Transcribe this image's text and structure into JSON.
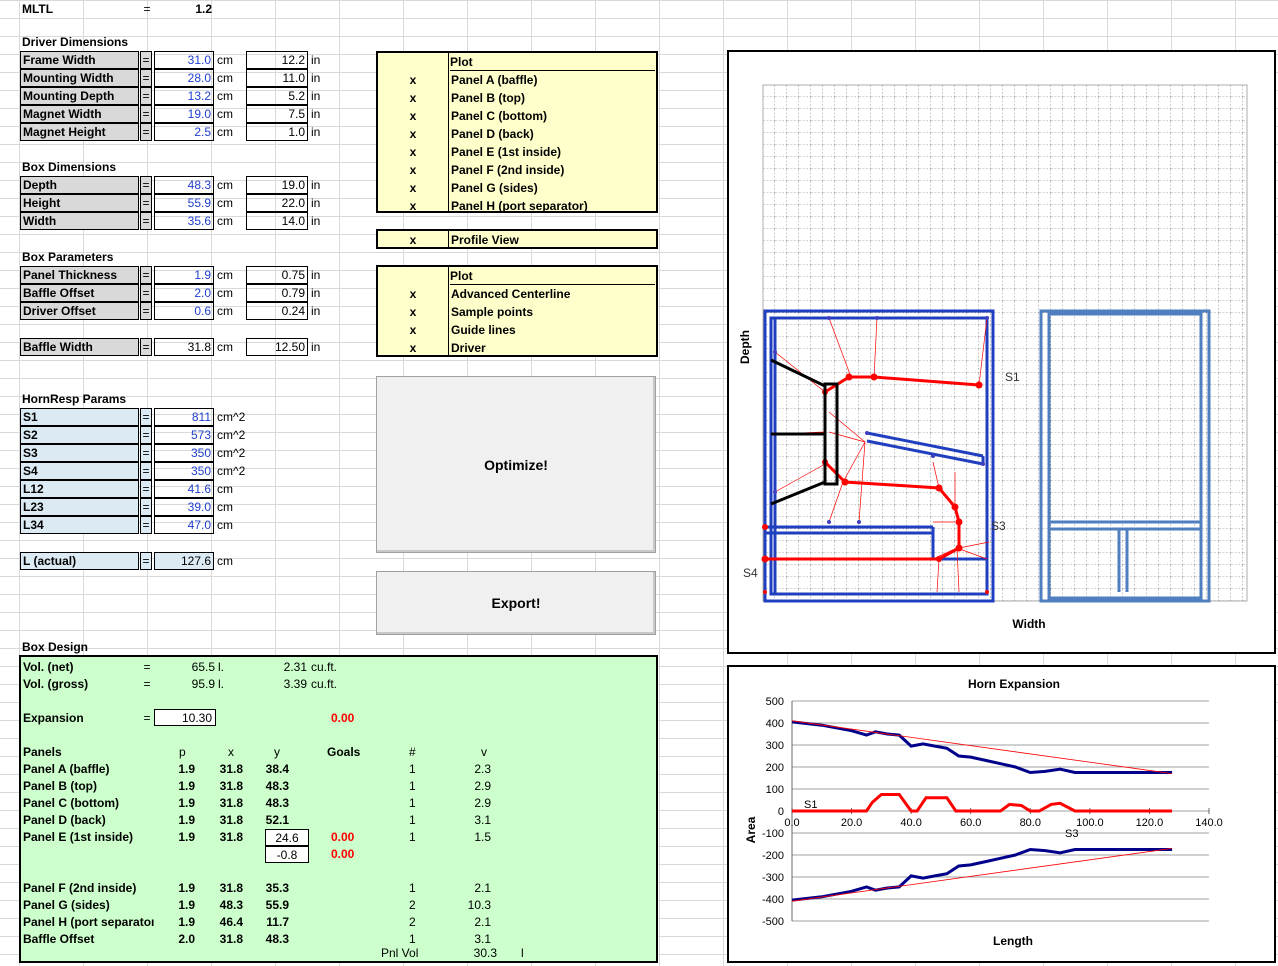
{
  "top": {
    "label": "MLTL",
    "eq": "=",
    "value": "1.2"
  },
  "driver": {
    "title": "Driver Dimensions",
    "rows": [
      {
        "label": "Frame Width",
        "cm": "31.0",
        "in": "12.2"
      },
      {
        "label": "Mounting Width",
        "cm": "28.0",
        "in": "11.0"
      },
      {
        "label": "Mounting Depth",
        "cm": "13.2",
        "in": "5.2"
      },
      {
        "label": "Magnet Width",
        "cm": "19.0",
        "in": "7.5"
      },
      {
        "label": "Magnet Height",
        "cm": "2.5",
        "in": "1.0"
      }
    ]
  },
  "box_dims": {
    "title": "Box Dimensions",
    "rows": [
      {
        "label": "Depth",
        "cm": "48.3",
        "in": "19.0"
      },
      {
        "label": "Height",
        "cm": "55.9",
        "in": "22.0"
      },
      {
        "label": "Width",
        "cm": "35.6",
        "in": "14.0"
      }
    ]
  },
  "box_params": {
    "title": "Box Parameters",
    "rows": [
      {
        "label": "Panel Thickness",
        "cm": "1.9",
        "in": "0.75"
      },
      {
        "label": "Baffle Offset",
        "cm": "2.0",
        "in": "0.79"
      },
      {
        "label": "Driver Offset",
        "cm": "0.6",
        "in": "0.24"
      }
    ],
    "baffle": {
      "label": "Baffle Width",
      "cm": "31.8",
      "in": "12.50"
    }
  },
  "units": {
    "cm": "cm",
    "in": "in",
    "cm2": "cm^2",
    "eq": "="
  },
  "hornresp": {
    "title": "HornResp Params",
    "rows": [
      {
        "label": "S1",
        "value": "811",
        "unit": "cm^2"
      },
      {
        "label": "S2",
        "value": "573",
        "unit": "cm^2"
      },
      {
        "label": "S3",
        "value": "350",
        "unit": "cm^2"
      },
      {
        "label": "S4",
        "value": "350",
        "unit": "cm^2"
      },
      {
        "label": "L12",
        "value": "41.6",
        "unit": "cm"
      },
      {
        "label": "L23",
        "value": "39.0",
        "unit": "cm"
      },
      {
        "label": "L34",
        "value": "47.0",
        "unit": "cm"
      }
    ],
    "actual": {
      "label": "L (actual)",
      "value": "127.6",
      "unit": "cm"
    }
  },
  "plot_panels": {
    "header": "Plot",
    "items": [
      {
        "mark": "x",
        "label": "Panel A (baffle)"
      },
      {
        "mark": "x",
        "label": "Panel B (top)"
      },
      {
        "mark": "x",
        "label": "Panel C (bottom)"
      },
      {
        "mark": "x",
        "label": "Panel D (back)"
      },
      {
        "mark": "x",
        "label": "Panel E (1st inside)"
      },
      {
        "mark": "x",
        "label": "Panel F (2nd inside)"
      },
      {
        "mark": "x",
        "label": "Panel G (sides)"
      },
      {
        "mark": "x",
        "label": "Panel H (port separator)"
      }
    ]
  },
  "profile_view": {
    "mark": "x",
    "label": "Profile View"
  },
  "plot_options": {
    "header": "Plot",
    "items": [
      {
        "mark": "x",
        "label": "Advanced Centerline"
      },
      {
        "mark": "x",
        "label": "Sample points"
      },
      {
        "mark": "x",
        "label": "Guide lines"
      },
      {
        "mark": "x",
        "label": "Driver"
      }
    ]
  },
  "buttons": {
    "optimize": "Optimize!",
    "export": "Export!"
  },
  "box_design": {
    "title": "Box Design",
    "vol_net": {
      "label": "Vol. (net)",
      "eq": "=",
      "l": "65.5",
      "lu": "l.",
      "cuft": "2.31",
      "cu": "cu.ft."
    },
    "vol_gross": {
      "label": "Vol. (gross)",
      "eq": "=",
      "l": "95.9",
      "lu": "l.",
      "cuft": "3.39",
      "cu": "cu.ft."
    },
    "expansion": {
      "label": "Expansion",
      "eq": "=",
      "value": "10.30",
      "goal": "0.00"
    },
    "headers": {
      "panels": "Panels",
      "p": "p",
      "x": "x",
      "y": "y",
      "goals": "Goals",
      "num": "#",
      "v": "v"
    },
    "rows": [
      {
        "name": "Panel A (baffle)",
        "p": "1.9",
        "x": "31.8",
        "y": "38.4",
        "goal": "",
        "num": "1",
        "v": "2.3"
      },
      {
        "name": "Panel B (top)",
        "p": "1.9",
        "x": "31.8",
        "y": "48.3",
        "goal": "",
        "num": "1",
        "v": "2.9"
      },
      {
        "name": "Panel C (bottom)",
        "p": "1.9",
        "x": "31.8",
        "y": "48.3",
        "goal": "",
        "num": "1",
        "v": "2.9"
      },
      {
        "name": "Panel D (back)",
        "p": "1.9",
        "x": "31.8",
        "y": "52.1",
        "goal": "",
        "num": "1",
        "v": "3.1"
      },
      {
        "name": "Panel E (1st inside)",
        "p": "1.9",
        "x": "31.8",
        "y": "24.6",
        "goal": "0.00",
        "num": "1",
        "v": "1.5"
      },
      {
        "name": "",
        "p": "",
        "x": "",
        "y": "-0.8",
        "goal": "0.00",
        "num": "",
        "v": ""
      },
      {
        "name": "Panel F (2nd inside)",
        "p": "1.9",
        "x": "31.8",
        "y": "35.3",
        "goal": "",
        "num": "1",
        "v": "2.1"
      },
      {
        "name": "Panel G (sides)",
        "p": "1.9",
        "x": "48.3",
        "y": "55.9",
        "goal": "",
        "num": "2",
        "v": "10.3"
      },
      {
        "name": "Panel H (port separatoı",
        "p": "1.9",
        "x": "46.4",
        "y": "11.7",
        "goal": "",
        "num": "2",
        "v": "2.1"
      },
      {
        "name": "Baffle Offset",
        "p": "2.0",
        "x": "31.8",
        "y": "48.3",
        "goal": "",
        "num": "1",
        "v": "3.1"
      }
    ],
    "pnl_vol": {
      "label": "Pnl Vol",
      "value": "30.3",
      "unit": "l"
    }
  },
  "profile_plot": {
    "ylabel": "Depth",
    "xlabel": "Width",
    "labels": {
      "s1": "S1",
      "s3": "S3",
      "s4": "S4"
    }
  },
  "chart_data": {
    "type": "line",
    "title": "Horn Expansion",
    "xlabel": "Length",
    "ylabel": "Area",
    "xlim": [
      0,
      140
    ],
    "ylim": [
      -500,
      500
    ],
    "xticks": [
      "0.0",
      "20.0",
      "40.0",
      "60.0",
      "80.0",
      "100.0",
      "120.0",
      "140.0"
    ],
    "yticks": [
      "500",
      "400",
      "300",
      "200",
      "100",
      "0",
      "-100",
      "-200",
      "-300",
      "-400",
      "-500"
    ],
    "annotations": [
      "S1",
      "S3"
    ],
    "series": [
      {
        "color": "#00008b",
        "x": [
          0,
          10,
          20,
          25,
          28,
          32,
          36,
          40,
          44,
          48,
          52,
          56,
          60,
          65,
          70,
          75,
          80,
          85,
          90,
          95,
          100,
          110,
          120,
          127.6
        ],
        "y": [
          405,
          390,
          365,
          345,
          360,
          350,
          345,
          295,
          305,
          295,
          285,
          250,
          245,
          230,
          215,
          200,
          175,
          180,
          190,
          175,
          175,
          175,
          175,
          175
        ]
      },
      {
        "color": "#00008b",
        "x": [
          0,
          10,
          20,
          25,
          28,
          32,
          36,
          40,
          44,
          48,
          52,
          56,
          60,
          65,
          70,
          75,
          80,
          85,
          90,
          95,
          100,
          110,
          120,
          127.6
        ],
        "y": [
          -405,
          -390,
          -365,
          -345,
          -360,
          -350,
          -345,
          -295,
          -305,
          -295,
          -285,
          -250,
          -245,
          -230,
          -215,
          -200,
          -175,
          -180,
          -190,
          -175,
          -175,
          -175,
          -175,
          -175
        ]
      },
      {
        "color": "#ff0000",
        "x": [
          0,
          25,
          27,
          30,
          33,
          36,
          40,
          42,
          45,
          48,
          52,
          55,
          58,
          70,
          73,
          77,
          80,
          83,
          87,
          90,
          95,
          127.6
        ],
        "y": [
          0,
          0,
          40,
          75,
          75,
          75,
          0,
          0,
          60,
          60,
          60,
          0,
          0,
          0,
          30,
          25,
          0,
          0,
          30,
          35,
          0,
          0
        ]
      },
      {
        "color": "#ff0000",
        "x": [
          0,
          127.6
        ],
        "y": [
          410,
          170
        ]
      },
      {
        "color": "#ff0000",
        "x": [
          0,
          127.6
        ],
        "y": [
          -410,
          -170
        ]
      }
    ]
  }
}
